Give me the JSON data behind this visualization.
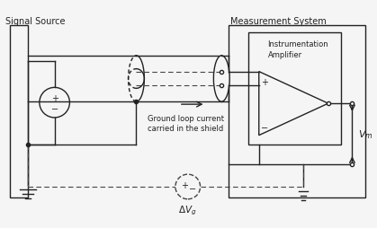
{
  "bg_color": "#f5f5f5",
  "line_color": "#222222",
  "dashed_color": "#444444",
  "title": "Signal Source",
  "meas_title": "Measurement System",
  "amp_title": "Instrumentation\nAmplifier",
  "arrow_label": "Ground loop current\ncarried in the shield",
  "vm_label": "V",
  "vm_sub": "m",
  "dvg_label": "ΔV",
  "dvg_sub": "g"
}
